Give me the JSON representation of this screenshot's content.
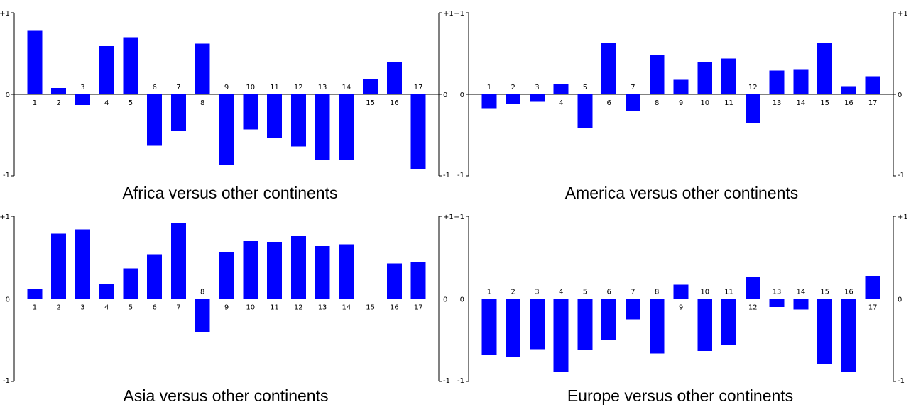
{
  "colors": {
    "bar": "#0000ff",
    "axis": "#000000",
    "text": "#000000"
  },
  "chart_data": [
    {
      "type": "bar",
      "title": "Africa versus other continents",
      "xlabel": "",
      "ylabel": "",
      "ylim": [
        -1,
        1
      ],
      "y_ticks": [
        "+1",
        "0",
        "-1"
      ],
      "categories": [
        "1",
        "2",
        "3",
        "4",
        "5",
        "6",
        "7",
        "8",
        "9",
        "10",
        "11",
        "12",
        "13",
        "14",
        "15",
        "16",
        "17"
      ],
      "values": [
        0.78,
        0.08,
        -0.13,
        0.59,
        0.7,
        -0.63,
        -0.45,
        0.62,
        -0.87,
        -0.43,
        -0.53,
        -0.64,
        -0.8,
        -0.8,
        0.19,
        0.39,
        -0.92
      ]
    },
    {
      "type": "bar",
      "title": "America versus other continents",
      "xlabel": "",
      "ylabel": "",
      "ylim": [
        -1,
        1
      ],
      "y_ticks": [
        "+1",
        "0",
        "-1"
      ],
      "categories": [
        "1",
        "2",
        "3",
        "4",
        "5",
        "6",
        "7",
        "8",
        "9",
        "10",
        "11",
        "12",
        "13",
        "14",
        "15",
        "16",
        "17"
      ],
      "values": [
        -0.18,
        -0.12,
        -0.09,
        0.13,
        -0.41,
        0.63,
        -0.2,
        0.48,
        0.18,
        0.39,
        0.44,
        -0.35,
        0.29,
        0.3,
        0.63,
        0.1,
        0.22
      ]
    },
    {
      "type": "bar",
      "title": "Asia versus other continents",
      "xlabel": "",
      "ylabel": "",
      "ylim": [
        -1,
        1
      ],
      "y_ticks": [
        "+1",
        "0",
        "-1"
      ],
      "categories": [
        "1",
        "2",
        "3",
        "4",
        "5",
        "6",
        "7",
        "8",
        "9",
        "10",
        "11",
        "12",
        "13",
        "14",
        "15",
        "16",
        "17"
      ],
      "values": [
        0.12,
        0.79,
        0.84,
        0.18,
        0.37,
        0.54,
        0.92,
        -0.4,
        0.57,
        0.7,
        0.69,
        0.76,
        0.64,
        0.66,
        0.0,
        0.43,
        0.44
      ]
    },
    {
      "type": "bar",
      "title": "Europe versus other continents",
      "xlabel": "",
      "ylabel": "",
      "ylim": [
        -1,
        1
      ],
      "y_ticks": [
        "+1",
        "0",
        "-1"
      ],
      "categories": [
        "1",
        "2",
        "3",
        "4",
        "5",
        "6",
        "7",
        "8",
        "9",
        "10",
        "11",
        "12",
        "13",
        "14",
        "15",
        "16",
        "17"
      ],
      "values": [
        -0.68,
        -0.71,
        -0.61,
        -0.88,
        -0.62,
        -0.5,
        -0.25,
        -0.66,
        0.17,
        -0.63,
        -0.56,
        0.27,
        -0.1,
        -0.13,
        -0.79,
        -0.88,
        0.28
      ]
    }
  ]
}
